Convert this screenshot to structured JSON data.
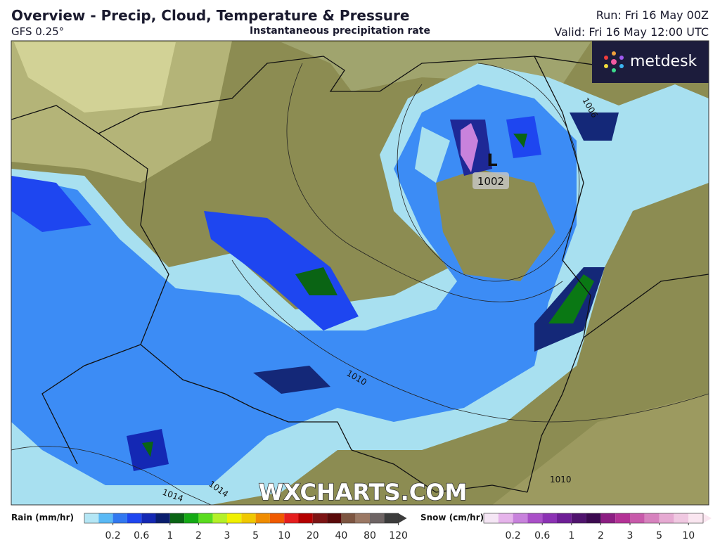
{
  "header": {
    "title": "Overview - Precip, Cloud, Temperature & Pressure",
    "model": "GFS 0.25°",
    "subtitle": "Instantaneous precipitation rate",
    "run": "Run: Fri 16 May 00Z",
    "valid": "Valid: Fri 16 May 12:00 UTC"
  },
  "logo": "metdesk",
  "watermark": "WXCHARTS.COM",
  "map_labels": {
    "low": "L",
    "low_pressure": "1002",
    "isobars": [
      "1006",
      "1010",
      "1010",
      "1014",
      "1014"
    ]
  },
  "legend": {
    "rain": {
      "title": "Rain (mm/hr)",
      "ticks": [
        0.2,
        0.6,
        1,
        2,
        3,
        5,
        10,
        20,
        40,
        80,
        120
      ],
      "colors": [
        "#b4e6f5",
        "#5ab9f5",
        "#3278f0",
        "#1e46f0",
        "#1428b4",
        "#0a1e6e",
        "#0a6414",
        "#14aa14",
        "#5adc1e",
        "#b4f028",
        "#f0f000",
        "#f0c800",
        "#f08c00",
        "#f05a00",
        "#e61e1e",
        "#b40000",
        "#7d1414",
        "#5a0a0a",
        "#7d5541",
        "#9b7864",
        "#6e6464",
        "#3c3c3c"
      ]
    },
    "snow": {
      "title": "Snow (cm/hr)",
      "ticks": [
        0.2,
        0.6,
        1,
        2,
        3,
        5,
        10
      ],
      "colors": [
        "#f5e6f5",
        "#e6b4eb",
        "#c882dc",
        "#aa50c8",
        "#8c32b4",
        "#6e1e96",
        "#50146e",
        "#3c0a50",
        "#8c1e82",
        "#b43296",
        "#c85aaa",
        "#d782be",
        "#e6aad2",
        "#f0c8e1",
        "#fae6f0"
      ]
    }
  }
}
